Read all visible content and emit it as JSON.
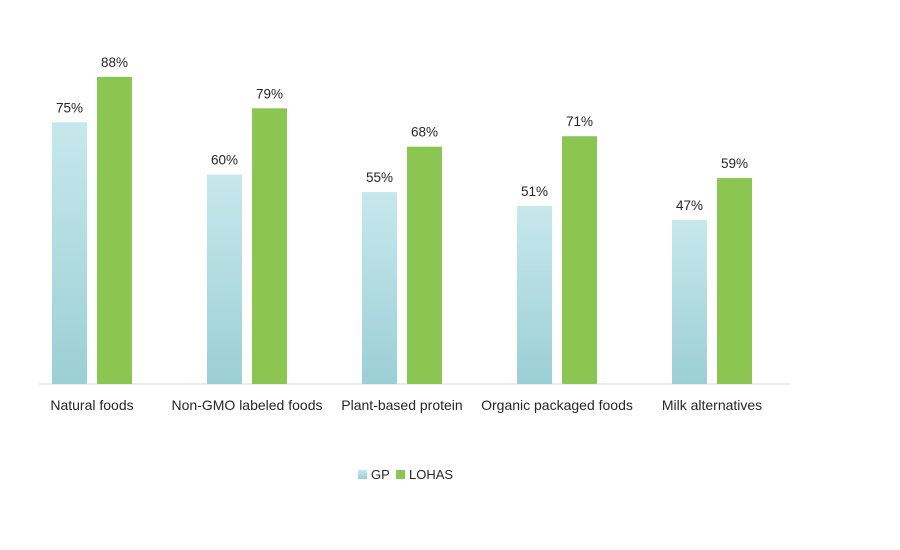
{
  "chart_data": {
    "type": "bar",
    "categories": [
      "Natural foods",
      "Non-GMO labeled foods",
      "Plant-based protein",
      "Organic packaged foods",
      "Milk alternatives"
    ],
    "series": [
      {
        "name": "GP",
        "values": [
          75,
          60,
          55,
          51,
          47
        ],
        "labels": [
          "75%",
          "60%",
          "55%",
          "51%",
          "47%"
        ],
        "color_top": "#c6e8ec",
        "color_bottom": "#9ccfd6"
      },
      {
        "name": "LOHAS",
        "values": [
          88,
          79,
          68,
          71,
          59
        ],
        "labels": [
          "88%",
          "79%",
          "68%",
          "71%",
          "59%"
        ],
        "color": "#8cc652"
      }
    ],
    "ylim": [
      0,
      100
    ],
    "grid": false,
    "legend_position": "bottom",
    "title": "",
    "xlabel": "",
    "ylabel": ""
  }
}
